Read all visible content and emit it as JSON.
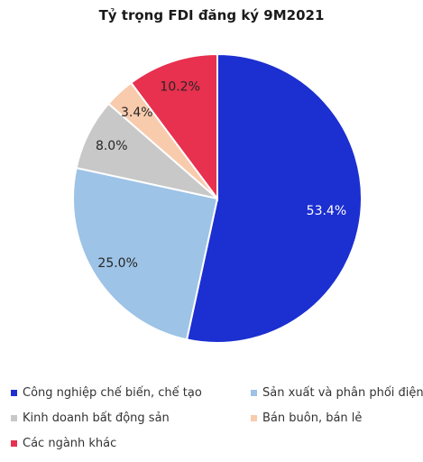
{
  "chart_data": {
    "type": "pie",
    "title": "Tỷ trọng FDI đăng ký 9M2021",
    "slices": [
      {
        "name": "Công nghiệp chế biến, chế tạo",
        "value": 53.4,
        "label": "53.4%",
        "color": "#1c2fd1",
        "label_color": "#ffffff"
      },
      {
        "name": "Sản xuất và phân phối điện",
        "value": 25.0,
        "label": "25.0%",
        "color": "#9dc3e6",
        "label_color": "#262626"
      },
      {
        "name": "Kinh doanh bất động sản",
        "value": 8.0,
        "label": "8.0%",
        "color": "#c8c8c8",
        "label_color": "#262626"
      },
      {
        "name": "Bán buôn, bán lẻ",
        "value": 3.4,
        "label": "3.4%",
        "color": "#f8cbad",
        "label_color": "#262626"
      },
      {
        "name": "Các ngành khác",
        "value": 10.2,
        "label": "10.2%",
        "color": "#e8304f",
        "label_color": "#262626"
      }
    ],
    "start_angle": "12 o'clock",
    "direction": "clockwise",
    "legend_position": "bottom"
  }
}
